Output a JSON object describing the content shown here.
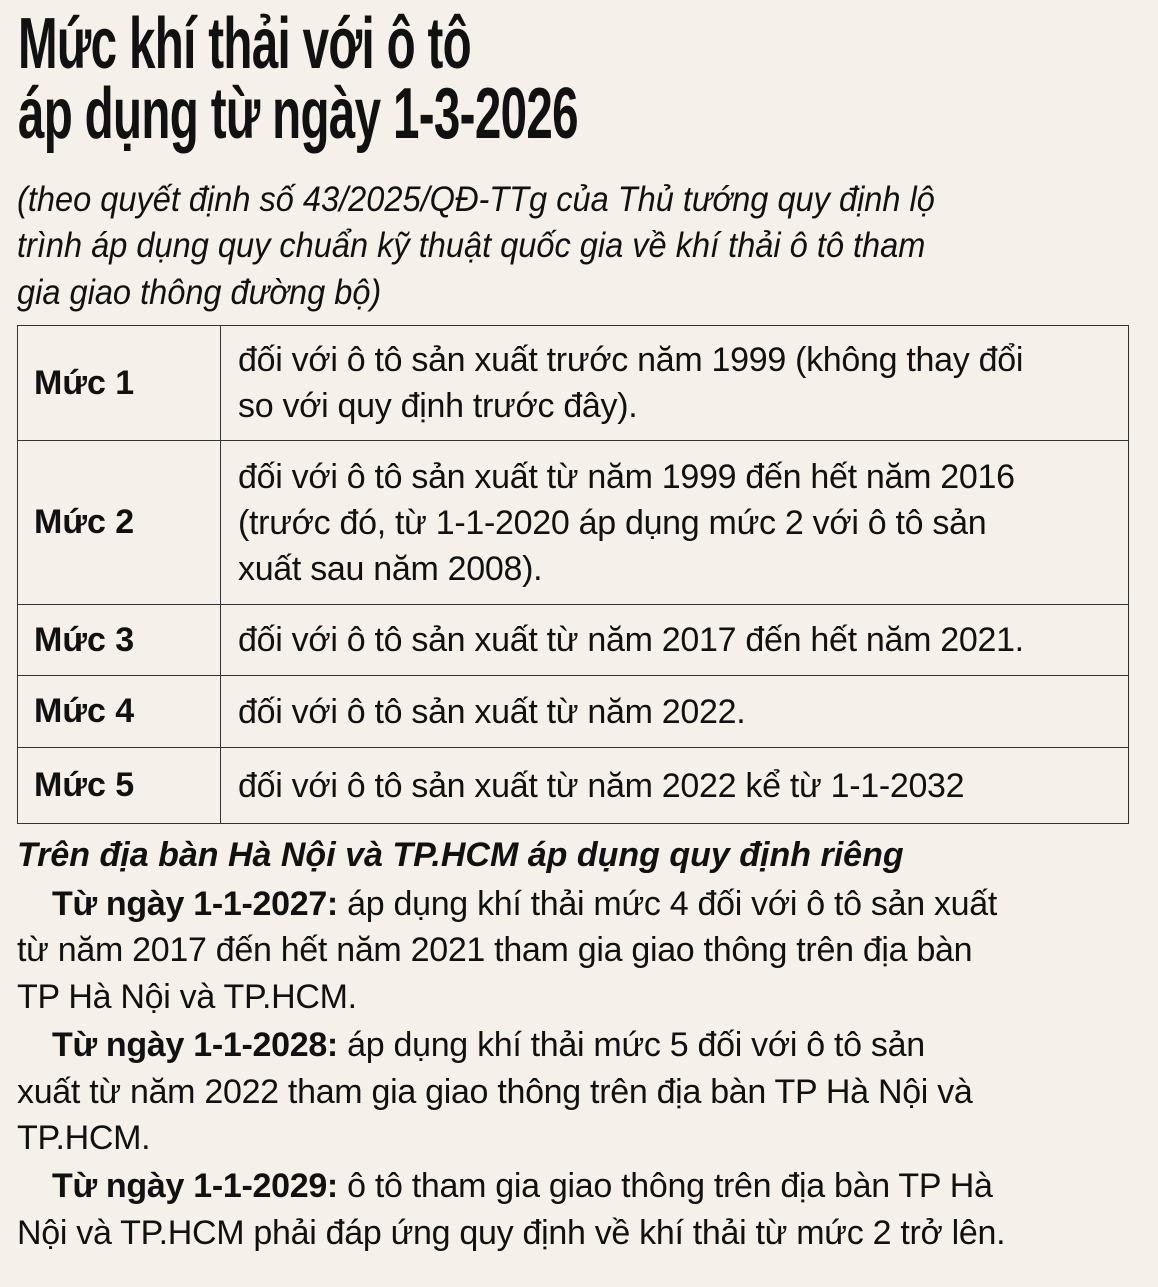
{
  "title": {
    "line1": "Mức khí thải với ô tô",
    "line2": "áp dụng từ ngày 1-3-2026"
  },
  "subtitle": {
    "lines": [
      "(theo quyết định số 43/2025/QĐ-TTg của Thủ tướng quy định lộ",
      "trình áp dụng quy chuẩn kỹ thuật quốc gia về khí thải ô tô tham",
      "gia giao thông đường bộ)"
    ]
  },
  "table": {
    "rows": [
      {
        "level": "Mức 1",
        "lines": [
          "đối với ô tô sản xuất trước năm 1999 (không thay đổi",
          "so với quy định trước đây)."
        ]
      },
      {
        "level": "Mức 2",
        "lines": [
          "đối với ô tô sản xuất từ năm 1999 đến hết năm 2016",
          "(trước đó, từ 1-1-2020 áp dụng mức 2 với ô tô sản",
          "xuất sau năm 2008)."
        ]
      },
      {
        "level": "Mức 3",
        "lines": [
          "đối với ô tô sản xuất từ năm 2017 đến hết năm 2021."
        ]
      },
      {
        "level": "Mức 4",
        "lines": [
          "đối với ô tô sản xuất từ năm 2022."
        ]
      },
      {
        "level": "Mức 5",
        "lines": [
          "đối với ô tô sản xuất từ năm 2022 kể từ 1-1-2032"
        ]
      }
    ]
  },
  "notes": {
    "heading": "Trên địa bàn Hà Nội và TP.HCM áp dụng quy định riêng",
    "items": [
      {
        "date": "Từ ngày 1-1-2027:",
        "first": " áp dụng khí thải mức 4 đối với ô tô sản xuất",
        "rest": [
          "từ năm 2017 đến hết năm 2021 tham gia giao thông trên địa bàn",
          "TP Hà Nội và TP.HCM."
        ]
      },
      {
        "date": "Từ ngày 1-1-2028:",
        "first": " áp dụng khí thải mức 5 đối với ô tô sản",
        "rest": [
          "xuất từ năm 2022 tham gia giao thông trên địa bàn TP Hà Nội và",
          "TP.HCM."
        ]
      },
      {
        "date": "Từ ngày 1-1-2029:",
        "first": " ô tô tham gia giao thông trên địa bàn TP Hà",
        "rest": [
          "Nội và TP.HCM phải đáp ứng quy định về khí thải từ mức 2 trở lên."
        ]
      }
    ]
  }
}
